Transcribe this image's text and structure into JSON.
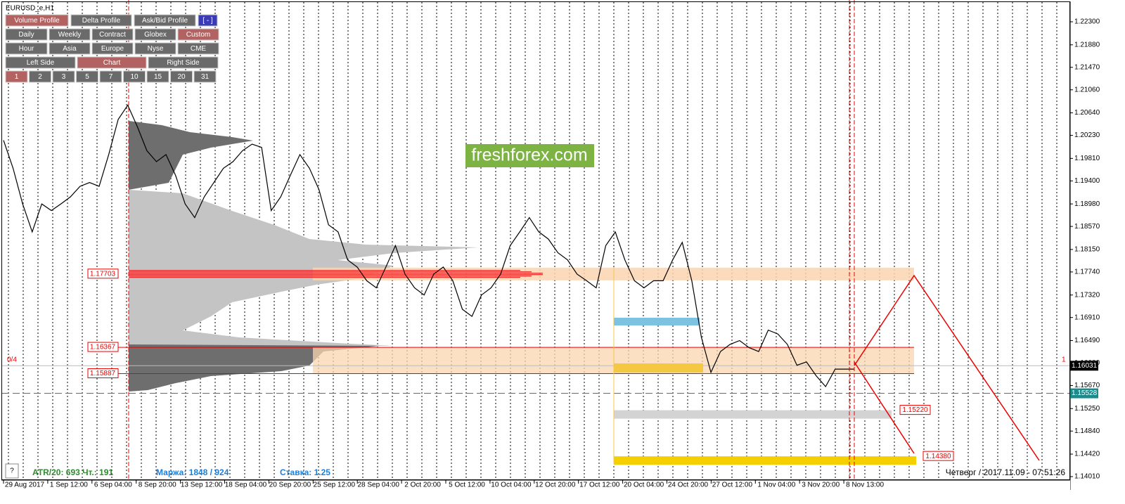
{
  "chart_data": {
    "type": "line",
    "title": "EURUSD_e,H1",
    "time_labels": [
      "29 Aug 2017",
      "1 Sep 12:00",
      "6 Sep 04:00",
      "8 Sep 20:00",
      "13 Sep 12:00",
      "18 Sep 04:00",
      "20 Sep 20:00",
      "25 Sep 12:00",
      "28 Sep 04:00",
      "2 Oct 20:00",
      "5 Oct 12:00",
      "10 Oct 04:00",
      "12 Oct 20:00",
      "17 Oct 12:00",
      "20 Oct 04:00",
      "24 Oct 20:00",
      "27 Oct 12:00",
      "1 Nov 04:00",
      "3 Nov 20:00",
      "8 Nov 13:00"
    ],
    "series": [
      {
        "name": "EURUSD_e",
        "color": "#000000",
        "values": [
          1.2014,
          1.1963,
          1.1898,
          1.1847,
          1.1898,
          1.1886,
          1.1898,
          1.1911,
          1.193,
          1.1937,
          1.193,
          1.1988,
          1.2052,
          1.2078,
          1.2039,
          1.1995,
          1.1975,
          1.1988,
          1.195,
          1.1898,
          1.1873,
          1.1911,
          1.1937,
          1.1963,
          1.1975,
          1.1995,
          1.2007,
          1.2001,
          1.1886,
          1.1911,
          1.195,
          1.1988,
          1.1963,
          1.1924,
          1.186,
          1.1847,
          1.1796,
          1.1783,
          1.1758,
          1.1745,
          1.1783,
          1.1822,
          1.177,
          1.1745,
          1.1732,
          1.177,
          1.1783,
          1.1758,
          1.1706,
          1.1693,
          1.1732,
          1.1745,
          1.177,
          1.1822,
          1.1847,
          1.1873,
          1.1847,
          1.1834,
          1.1809,
          1.1796,
          1.177,
          1.1758,
          1.1745,
          1.1822,
          1.1847,
          1.1796,
          1.1758,
          1.1745,
          1.1758,
          1.1758,
          1.1796,
          1.1828,
          1.1758,
          1.1655,
          1.1591,
          1.1629,
          1.1642,
          1.1649,
          1.1636,
          1.1629,
          1.1668,
          1.1661,
          1.1642,
          1.1604,
          1.161,
          1.1585,
          1.1565,
          1.1597,
          1.1597,
          1.1597
        ]
      }
    ],
    "ylim": [
      1.13767,
      1.22697
    ],
    "yticks": [
      {
        "value": 1.223,
        "label": "1.22300"
      },
      {
        "value": 1.2188,
        "label": "1.21880"
      },
      {
        "value": 1.2147,
        "label": "1.21470"
      },
      {
        "value": 1.2106,
        "label": "1.21060"
      },
      {
        "value": 1.2064,
        "label": "1.20640"
      },
      {
        "value": 1.2023,
        "label": "1.20230"
      },
      {
        "value": 1.1981,
        "label": "1.19810"
      },
      {
        "value": 1.194,
        "label": "1.19400"
      },
      {
        "value": 1.1898,
        "label": "1.18980"
      },
      {
        "value": 1.1857,
        "label": "1.18570"
      },
      {
        "value": 1.1815,
        "label": "1.18150"
      },
      {
        "value": 1.1774,
        "label": "1.17740"
      },
      {
        "value": 1.1732,
        "label": "1.17320"
      },
      {
        "value": 1.1691,
        "label": "1.16910"
      },
      {
        "value": 1.1649,
        "label": "1.16490"
      },
      {
        "value": 1.1608,
        "label": "1.16080"
      },
      {
        "value": 1.1567,
        "label": "1.15670"
      },
      {
        "value": 1.1525,
        "label": "1.15250"
      },
      {
        "value": 1.1484,
        "label": "1.14840"
      },
      {
        "value": 1.1442,
        "label": "1.14420"
      },
      {
        "value": 1.1401,
        "label": "1.14010"
      }
    ],
    "left_levels": [
      1.17703,
      1.16367,
      1.15887
    ],
    "right_levels": [
      {
        "value": 1.1522,
        "label": "1.15220"
      },
      {
        "value": 1.1438,
        "label": "1.14380"
      }
    ],
    "current_price": 1.16031,
    "marker_price": 1.15528,
    "corner_left": "0/4",
    "corner_right": "1",
    "watermark": "freshforex.com",
    "help": "?",
    "stats": [
      "ATR/20: 693  Чт.: 191",
      "Маржа: 1848 / 924",
      "Ставка: 1.25"
    ],
    "clock": "Четверг  /  2017.11.09  -  07:51:26"
  },
  "toolbar": {
    "rows": [
      [
        {
          "label": "Volume Profile",
          "active": true
        },
        {
          "label": "Delta Profile",
          "active": false
        },
        {
          "label": "Ask/Bid Profile",
          "active": false
        },
        {
          "label": "[ - ]",
          "active": false
        }
      ],
      [
        {
          "label": "Daily",
          "active": false
        },
        {
          "label": "Weekly",
          "active": false
        },
        {
          "label": "Contract",
          "active": false
        },
        {
          "label": "Globex",
          "active": false
        },
        {
          "label": "Custom",
          "active": true
        }
      ],
      [
        {
          "label": "Hour",
          "active": false
        },
        {
          "label": "Asia",
          "active": false
        },
        {
          "label": "Europe",
          "active": false
        },
        {
          "label": "Nyse",
          "active": false
        },
        {
          "label": "CME",
          "active": false
        }
      ],
      [
        {
          "label": "Left Side",
          "active": false
        },
        {
          "label": "Chart",
          "active": true
        },
        {
          "label": "Right Side",
          "active": false
        }
      ],
      [
        {
          "label": "1",
          "active": true
        },
        {
          "label": "2",
          "active": false
        },
        {
          "label": "3",
          "active": false
        },
        {
          "label": "5",
          "active": false
        },
        {
          "label": "7",
          "active": false
        },
        {
          "label": "10",
          "active": false
        },
        {
          "label": "15",
          "active": false
        },
        {
          "label": "20",
          "active": false
        },
        {
          "label": "31",
          "active": false
        }
      ]
    ]
  }
}
